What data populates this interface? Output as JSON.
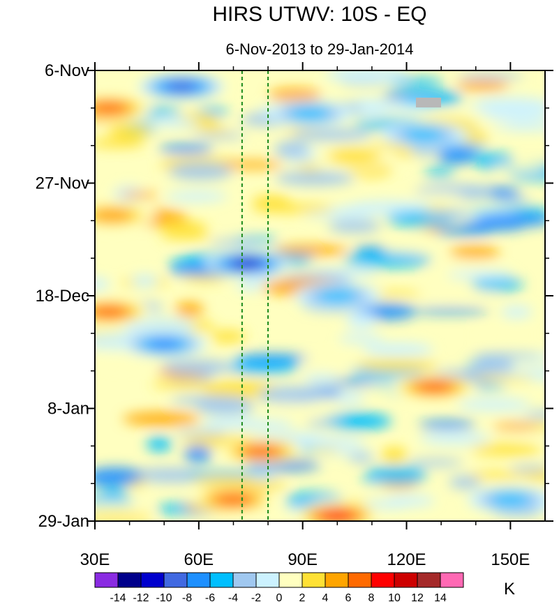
{
  "chart_data": {
    "type": "heatmap",
    "title": "HIRS UTWV: 10S - EQ",
    "subtitle": "6-Nov-2013 to 29-Jan-2014",
    "x_axis": {
      "range": [
        30,
        160
      ],
      "ticks": [
        {
          "value": 30,
          "label": "30E"
        },
        {
          "value": 60,
          "label": "60E"
        },
        {
          "value": 90,
          "label": "90E"
        },
        {
          "value": 120,
          "label": "120E"
        },
        {
          "value": 150,
          "label": "150E"
        }
      ]
    },
    "y_axis": {
      "range_days": [
        0,
        84
      ],
      "direction": "top-to-bottom",
      "ticks": [
        {
          "day": 0,
          "label": "6-Nov"
        },
        {
          "day": 21,
          "label": "27-Nov"
        },
        {
          "day": 42,
          "label": "18-Dec"
        },
        {
          "day": 63,
          "label": "8-Jan"
        },
        {
          "day": 84,
          "label": "29-Jan"
        }
      ]
    },
    "reference_lines_lon": [
      72.5,
      80
    ],
    "colorbar": {
      "unit": "K",
      "levels": [
        -14,
        -12,
        -10,
        -8,
        -6,
        -4,
        -2,
        0,
        2,
        4,
        6,
        8,
        10,
        12,
        14
      ],
      "labels": [
        "-14",
        "-12",
        "-10",
        "-8",
        "-6",
        "-4",
        "-2",
        "0",
        "2",
        "4",
        "6",
        "8",
        "10",
        "12",
        "14"
      ],
      "colors": [
        "#8a2be2",
        "#00008b",
        "#0000cd",
        "#4169e1",
        "#1e90ff",
        "#00bfff",
        "#a0c8f0",
        "#ccf2ff",
        "#ffffc0",
        "#ffe135",
        "#ffa500",
        "#ff6a00",
        "#ff0000",
        "#cd0000",
        "#a52a2a",
        "#ff69b4"
      ]
    },
    "features": [
      {
        "lon": 55,
        "day": 3,
        "value": -10,
        "note": "strong negative anomaly"
      },
      {
        "lon": 74,
        "day": 36,
        "value": -12,
        "note": "strongest negative anomaly"
      },
      {
        "lon": 100,
        "day": 83,
        "value": 11,
        "note": "strong positive anomaly"
      },
      {
        "lon": 78,
        "day": 71,
        "value": 9,
        "note": "positive anomaly"
      },
      {
        "lon": 128,
        "day": 59,
        "value": 9,
        "note": "positive anomaly"
      },
      {
        "lon": 34,
        "day": 7,
        "value": 8,
        "note": "positive anomaly"
      },
      {
        "lon": 34,
        "day": 45,
        "value": 8,
        "note": "positive anomaly"
      },
      {
        "lon": 70,
        "day": 80,
        "value": 8,
        "note": "positive anomaly"
      },
      {
        "lon": 92,
        "day": 8,
        "value": -7,
        "note": "negative anomaly"
      },
      {
        "lon": 125,
        "day": 12,
        "value": -7,
        "note": "negative anomaly"
      },
      {
        "lon": 50,
        "day": 51,
        "value": -8,
        "note": "negative anomaly"
      },
      {
        "lon": 100,
        "day": 42,
        "value": -7,
        "note": "negative anomaly"
      },
      {
        "lon": 150,
        "day": 80,
        "value": -7,
        "note": "negative anomaly"
      },
      {
        "lon": 105,
        "day": 16,
        "value": 5,
        "note": "positive anomaly"
      },
      {
        "lon": 35,
        "day": 27,
        "value": 6,
        "note": "positive anomaly"
      }
    ]
  }
}
